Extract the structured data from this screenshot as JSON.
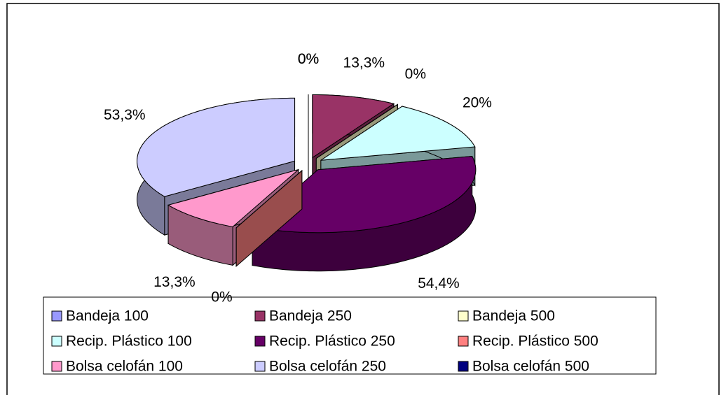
{
  "chart_data": {
    "type": "pie",
    "categories": [
      "Bandeja 100",
      "Bandeja 250",
      "Bandeja 500",
      "Recip. Plástico 100",
      "Recip. Plástico 250",
      "Recip. Plástico 500",
      "Bolsa celofán 100",
      "Bolsa celofán 250",
      "Bolsa celofán 500"
    ],
    "values": [
      0,
      13.3,
      0,
      20,
      54.4,
      0,
      13.3,
      53.3,
      0
    ],
    "value_labels": [
      "0%",
      "13,3%",
      "0%",
      "20%",
      "54,4%",
      "0%",
      "13,3%",
      "53,3%",
      "0%"
    ],
    "colors": [
      "#9999ff",
      "#993366",
      "#ffffcc",
      "#ccffff",
      "#660066",
      "#ff8080",
      "#ff99cc",
      "#ccccff",
      "#000080"
    ],
    "legend": "bottom"
  }
}
